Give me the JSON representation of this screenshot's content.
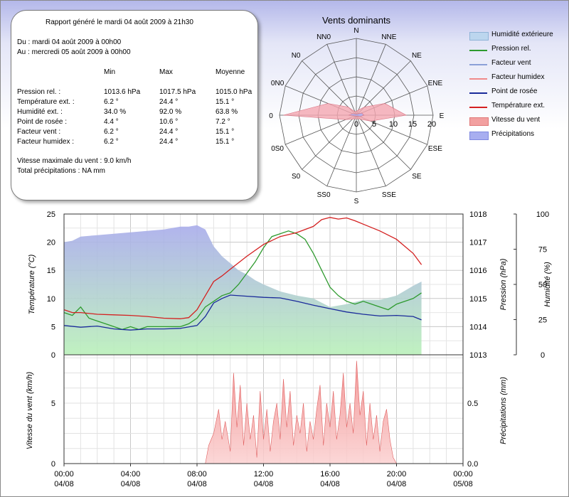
{
  "report": {
    "title": "Rapport généré le mardi 04 août 2009 à 21h30",
    "from": "Du : mardi 04 août 2009 à 00h00",
    "to": "Au : mercredi 05 août 2009 à 00h00",
    "col_headers": [
      "Min",
      "Max",
      "Moyenne"
    ],
    "rows": [
      {
        "label": "Pression rel. :",
        "min": "1013.6 hPa",
        "max": "1017.5 hPa",
        "avg": "1015.0 hPa"
      },
      {
        "label": "Température ext. :",
        "min": "6.2 °",
        "max": "24.4 °",
        "avg": "15.1 °"
      },
      {
        "label": "Humidité ext. :",
        "min": "34.0 %",
        "max": "92.0 %",
        "avg": "63.8 %"
      },
      {
        "label": "Point de rosée :",
        "min": "4.4 °",
        "max": "10.6 °",
        "avg": "7.2 °"
      },
      {
        "label": "Facteur vent :",
        "min": "6.2 °",
        "max": "24.4 °",
        "avg": "15.1 °"
      },
      {
        "label": "Facteur humidex :",
        "min": "6.2 °",
        "max": "24.4 °",
        "avg": "15.1 °"
      }
    ],
    "max_wind": "Vitesse maximale du vent : 9.0 km/h",
    "total_precip": "Total précipitations : NA mm"
  },
  "legend": [
    {
      "label": "Humidité extérieure",
      "kind": "area",
      "color": "#bcd6ee"
    },
    {
      "label": "Pression rel.",
      "kind": "line",
      "color": "#2e9a2e"
    },
    {
      "label": "Facteur vent",
      "kind": "line",
      "color": "#8ca0d8"
    },
    {
      "label": "Facteur humidex",
      "kind": "line",
      "color": "#f08a8a"
    },
    {
      "label": "Point de rosée",
      "kind": "line",
      "color": "#1a2a9a"
    },
    {
      "label": "Température ext.",
      "kind": "line",
      "color": "#d42020"
    },
    {
      "label": "Vitesse du vent",
      "kind": "area",
      "color": "#f2a0a0"
    },
    {
      "label": "Précipitations",
      "kind": "area",
      "color": "#a8aef0"
    }
  ],
  "chart_data": [
    {
      "type": "polar",
      "title": "Vents dominants",
      "directions": [
        "N",
        "NNE",
        "NE",
        "ENE",
        "E",
        "ESE",
        "SE",
        "SSE",
        "S",
        "SS0",
        "S0",
        "0S0",
        "0",
        "0N0",
        "N0",
        "NN0"
      ],
      "radial_ticks": [
        "0",
        "5",
        "10",
        "15",
        "20"
      ],
      "rmax": 20,
      "series": [
        {
          "color": "#f4a6b0",
          "values": [
            1,
            1.5,
            3,
            8,
            13,
            4,
            1.5,
            1,
            1,
            1,
            1.5,
            3,
            19,
            8,
            3,
            1
          ]
        },
        {
          "color": "#aab0f0",
          "values": [
            0.3,
            0.3,
            0.5,
            1.5,
            2,
            1,
            0.3,
            0.3,
            0.3,
            0.3,
            0.3,
            0.5,
            2,
            1,
            0.5,
            0.3
          ]
        }
      ]
    },
    {
      "type": "line",
      "x_ticks": [
        "00:00\n04/08",
        "04:00\n04/08",
        "08:00\n04/08",
        "12:00\n04/08",
        "16:00\n04/08",
        "20:00\n04/08",
        "00:00\n05/08"
      ],
      "xlim": [
        0,
        24
      ],
      "ylabel": "Température (°C)",
      "ylim": [
        0,
        25
      ],
      "yticks": [
        "0",
        "5",
        "10",
        "15",
        "20",
        "25"
      ],
      "y2label": "Pression (hPa)",
      "y2lim": [
        1013,
        1018
      ],
      "y2ticks": [
        "1013",
        "1014",
        "1015",
        "1016",
        "1017",
        "1018"
      ],
      "y3label": "Humidité (%)",
      "y3lim": [
        0,
        100
      ],
      "y3ticks": [
        "0",
        "25",
        "50",
        "75",
        "100"
      ],
      "series": [
        {
          "name": "Humidité extérieure",
          "axis": "y3",
          "kind": "area",
          "x": [
            0,
            0.5,
            1,
            2,
            3,
            4,
            5,
            6,
            7,
            7.5,
            8,
            8.5,
            9,
            9.5,
            10,
            10.5,
            11,
            11.5,
            12,
            13,
            14,
            15,
            16,
            17,
            18,
            19,
            20,
            21,
            21.5
          ],
          "y": [
            80,
            81,
            84,
            85,
            86,
            87,
            88,
            89,
            91,
            91,
            92,
            89,
            77,
            70,
            65,
            60,
            57,
            53,
            50,
            45,
            42,
            40,
            34,
            36,
            39,
            39,
            42,
            49,
            52
          ]
        },
        {
          "name": "Pression rel.",
          "axis": "y2",
          "kind": "line",
          "x": [
            0,
            0.5,
            1,
            1.5,
            2,
            2.5,
            3,
            3.5,
            4,
            4.5,
            5,
            5.5,
            6,
            6.5,
            7,
            7.5,
            8,
            8.5,
            9,
            9.5,
            10,
            10.5,
            11,
            11.5,
            12,
            12.5,
            13,
            13.5,
            14,
            14.5,
            15,
            15.5,
            16,
            16.5,
            17,
            17.5,
            18,
            18.5,
            19,
            19.5,
            20,
            20.5,
            21,
            21.5
          ],
          "y": [
            1014.5,
            1014.4,
            1014.7,
            1014.3,
            1014.2,
            1014.1,
            1014,
            1013.9,
            1014,
            1013.9,
            1014,
            1014,
            1014,
            1014,
            1014,
            1014.1,
            1014.3,
            1014.7,
            1014.9,
            1015.1,
            1015.2,
            1015.5,
            1015.9,
            1016.3,
            1016.8,
            1017.2,
            1017.3,
            1017.4,
            1017.3,
            1017.1,
            1016.6,
            1016,
            1015.4,
            1015.1,
            1014.9,
            1014.8,
            1014.9,
            1014.8,
            1014.7,
            1014.6,
            1014.8,
            1014.9,
            1015,
            1015.2
          ]
        },
        {
          "name": "Point de rosée",
          "axis": "y1",
          "kind": "line",
          "x": [
            0,
            1,
            2,
            3,
            4,
            5,
            6,
            7,
            8,
            8.5,
            9,
            9.5,
            10,
            11,
            12,
            13,
            14,
            15,
            16,
            17,
            18,
            19,
            20,
            21,
            21.5
          ],
          "y": [
            5.2,
            4.9,
            5.1,
            4.6,
            4.4,
            4.6,
            4.6,
            4.7,
            5.2,
            6.8,
            9.2,
            10,
            10.6,
            10.4,
            10.2,
            10.1,
            9.5,
            8.8,
            8.2,
            7.6,
            7.2,
            6.9,
            7,
            6.8,
            6.2
          ]
        },
        {
          "name": "Température ext.",
          "axis": "y1",
          "kind": "line",
          "x": [
            0,
            0.5,
            1,
            2,
            3,
            4,
            5,
            6,
            7,
            7.5,
            8,
            8.5,
            9,
            9.5,
            10,
            11,
            12,
            13,
            14,
            15,
            15.5,
            16,
            16.5,
            17,
            17.5,
            18,
            19,
            20,
            21,
            21.5
          ],
          "y": [
            8,
            7.5,
            7.5,
            7.2,
            7.1,
            7,
            6.8,
            6.5,
            6.4,
            6.6,
            8,
            10.5,
            13,
            14,
            15.2,
            17.5,
            19.6,
            21,
            21.7,
            22.8,
            24,
            24.4,
            24.1,
            24.3,
            23.8,
            23.2,
            22,
            20.5,
            18,
            16
          ]
        }
      ]
    },
    {
      "type": "area",
      "ylabel": "Vitesse du vent (km/h)",
      "ylim": [
        0,
        9
      ],
      "yticks": [
        "0",
        "5"
      ],
      "y2label": "Précipitations (mm)",
      "y2lim": [
        0,
        0.9
      ],
      "y2ticks": [
        "0.0",
        "0.5"
      ],
      "xlim": [
        0,
        24
      ],
      "series": [
        {
          "name": "Vitesse du vent",
          "kind": "area",
          "x": [
            8.5,
            8.7,
            9,
            9.3,
            9.5,
            9.7,
            10,
            10.2,
            10.4,
            10.6,
            10.8,
            11,
            11.2,
            11.4,
            11.6,
            11.8,
            12,
            12.2,
            12.4,
            12.6,
            12.8,
            13,
            13.2,
            13.4,
            13.6,
            13.8,
            14,
            14.2,
            14.4,
            14.6,
            14.8,
            15,
            15.2,
            15.4,
            15.6,
            15.8,
            16,
            16.2,
            16.4,
            16.6,
            16.8,
            17,
            17.2,
            17.4,
            17.6,
            17.8,
            18,
            18.2,
            18.4,
            18.6,
            18.8,
            19,
            19.2,
            19.4,
            19.6,
            19.8,
            20
          ],
          "y": [
            0,
            1.5,
            2.5,
            4.5,
            2,
            3.5,
            1,
            7.5,
            3,
            6.5,
            1.5,
            5,
            2,
            4,
            0.5,
            6,
            2,
            4.5,
            1,
            3.5,
            5,
            2,
            7,
            3,
            6,
            1.5,
            4,
            2.5,
            5,
            1,
            3.5,
            2,
            4.5,
            6.5,
            1.5,
            5,
            3,
            6,
            2,
            4,
            7.5,
            3,
            5,
            2.5,
            8.5,
            4,
            6,
            1.5,
            5,
            2,
            4,
            1,
            3.5,
            4.5,
            2,
            0.5,
            0
          ]
        }
      ]
    }
  ]
}
